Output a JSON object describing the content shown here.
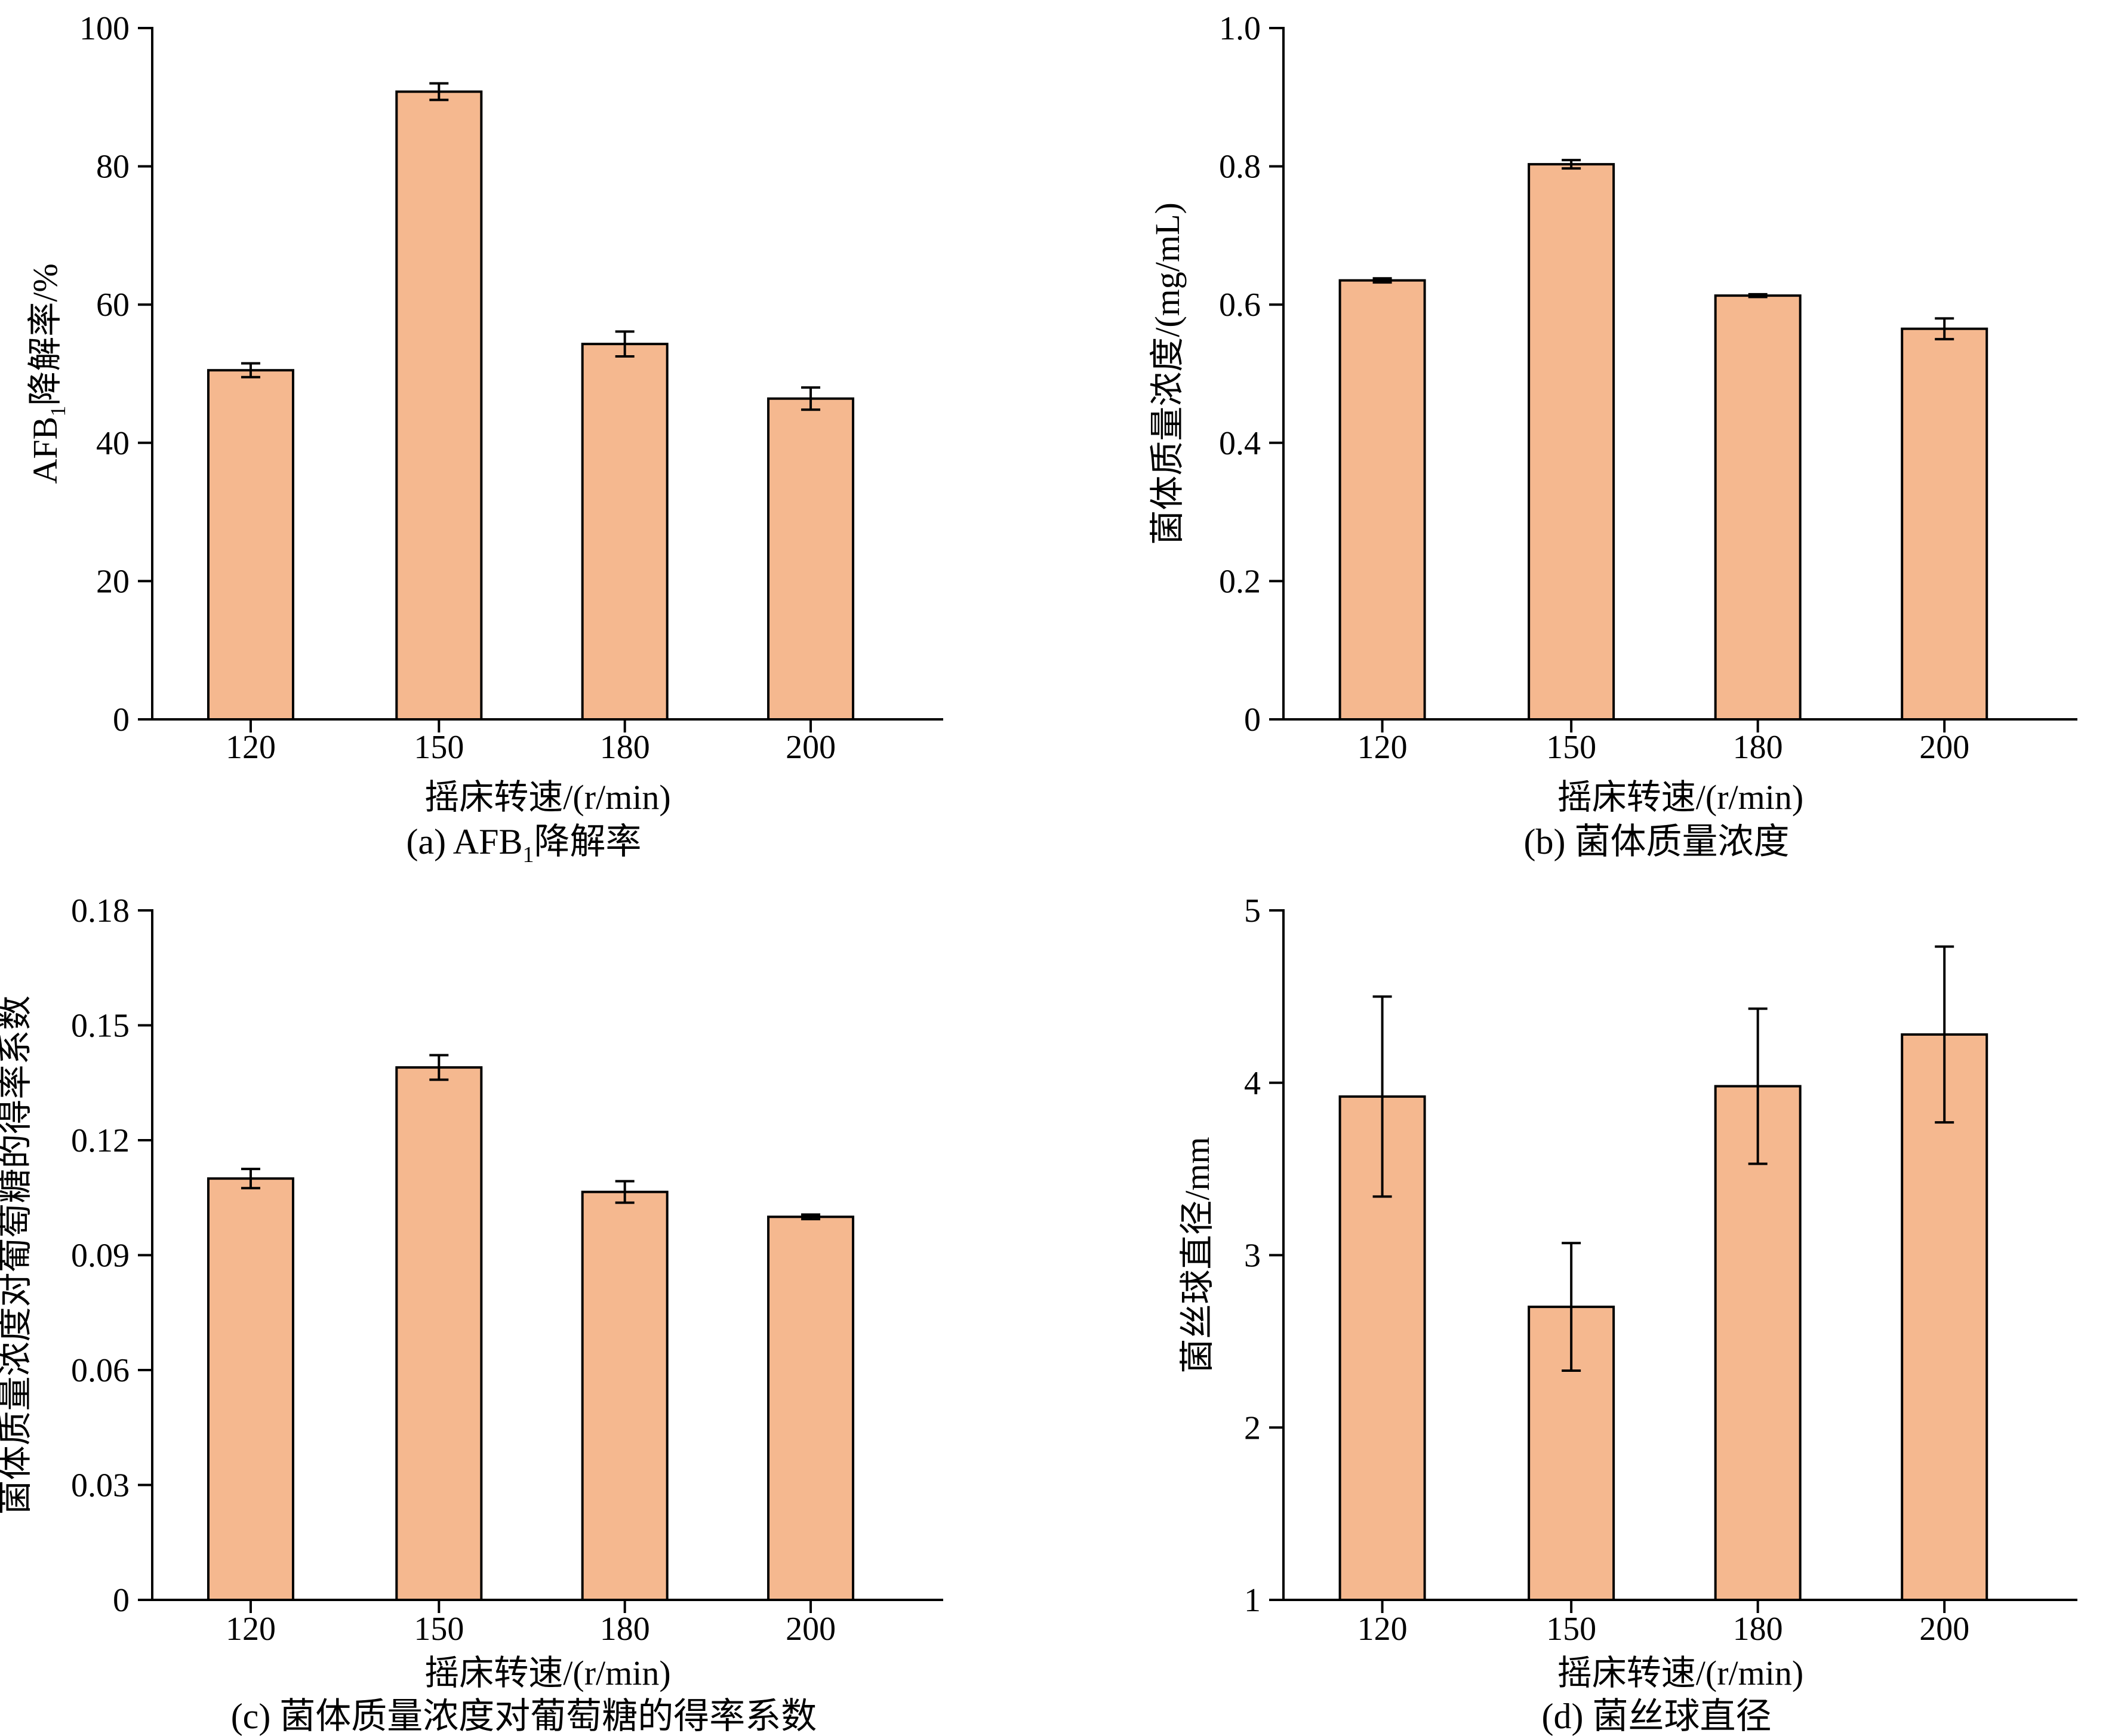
{
  "colors": {
    "bar_fill": "#F5B88F",
    "axis": "#000000"
  },
  "chart_data": [
    {
      "id": "a",
      "type": "bar",
      "caption": "(a) AFB1降解率",
      "caption_parts": {
        "prefix": "(a) AFB",
        "sub": "1",
        "suffix": "降解率"
      },
      "xlabel": "摇床转速/(r/min)",
      "ylabel": "AFB1降解率/%",
      "ylabel_parts": {
        "prefix": "AFB",
        "sub": "1",
        "suffix": "降解率/%"
      },
      "categories": [
        "120",
        "150",
        "180",
        "200"
      ],
      "values": [
        50.5,
        90.8,
        54.3,
        46.4
      ],
      "errors": [
        1.0,
        1.2,
        1.8,
        1.6
      ],
      "ylim": [
        0,
        100
      ],
      "yticks": [
        0,
        20,
        40,
        60,
        80,
        100
      ],
      "ytick_labels": [
        "0",
        "20",
        "40",
        "60",
        "80",
        "100"
      ]
    },
    {
      "id": "b",
      "type": "bar",
      "caption": "(b) 菌体质量浓度",
      "xlabel": "摇床转速/(r/min)",
      "ylabel": "菌体质量浓度/(mg/mL)",
      "categories": [
        "120",
        "150",
        "180",
        "200"
      ],
      "values": [
        0.635,
        0.803,
        0.613,
        0.565
      ],
      "errors": [
        0.003,
        0.006,
        0.002,
        0.015
      ],
      "ylim": [
        0,
        1.0
      ],
      "yticks": [
        0,
        0.2,
        0.4,
        0.6,
        0.8,
        1.0
      ],
      "ytick_labels": [
        "0",
        "0.2",
        "0.4",
        "0.6",
        "0.8",
        "1.0"
      ]
    },
    {
      "id": "c",
      "type": "bar",
      "caption": "(c) 菌体质量浓度对葡萄糖的得率系数",
      "xlabel": "摇床转速/(r/min)",
      "ylabel": "菌体质量浓度对葡萄糖的得率系数",
      "categories": [
        "120",
        "150",
        "180",
        "200"
      ],
      "values": [
        0.11,
        0.139,
        0.1065,
        0.1
      ],
      "errors": [
        0.0025,
        0.0032,
        0.0028,
        0.0006
      ],
      "ylim": [
        0,
        0.18
      ],
      "yticks": [
        0,
        0.03,
        0.06,
        0.09,
        0.12,
        0.15,
        0.18
      ],
      "ytick_labels": [
        "0",
        "0.03",
        "0.06",
        "0.09",
        "0.12",
        "0.15",
        "0.18"
      ]
    },
    {
      "id": "d",
      "type": "bar",
      "caption": "(d) 菌丝球直径",
      "xlabel": "摇床转速/(r/min)",
      "ylabel": "菌丝球直径/mm",
      "categories": [
        "120",
        "150",
        "180",
        "200"
      ],
      "values": [
        3.92,
        2.7,
        3.98,
        4.28
      ],
      "errors": [
        0.58,
        0.37,
        0.45,
        0.51
      ],
      "ylim": [
        1,
        5
      ],
      "yticks": [
        1,
        2,
        3,
        4,
        5
      ],
      "ytick_labels": [
        "1",
        "2",
        "3",
        "4",
        "5"
      ]
    }
  ]
}
